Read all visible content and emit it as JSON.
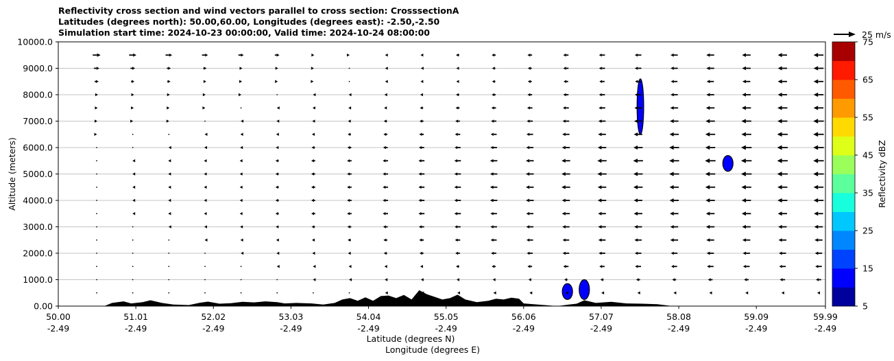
{
  "chart_data": {
    "type": "cross-section",
    "title_lines": [
      "Reflectivity cross section and wind vectors parallel to cross section: CrosssectionA",
      "Latitudes (degrees north): 50.00,60.00, Longitudes (degrees east): -2.50,-2.50",
      "Simulation start time: 2024-10-23 00:00:00, Valid time: 2024-10-24 08:00:00"
    ],
    "ylabel": "Altitude (meters)",
    "xlabel_line1": "Latitude (degrees N)",
    "xlabel_line2": "Longitude (degrees E)",
    "xlim": [
      50.0,
      59.99
    ],
    "ylim": [
      0,
      10000
    ],
    "grid": "horizontal",
    "y_ticks": [
      {
        "value": 0,
        "label": "0.00"
      },
      {
        "value": 1000,
        "label": "1000.0"
      },
      {
        "value": 2000,
        "label": "2000.0"
      },
      {
        "value": 3000,
        "label": "3000.0"
      },
      {
        "value": 4000,
        "label": "4000.0"
      },
      {
        "value": 5000,
        "label": "5000.0"
      },
      {
        "value": 6000,
        "label": "6000.0"
      },
      {
        "value": 7000,
        "label": "7000.0"
      },
      {
        "value": 8000,
        "label": "8000.0"
      },
      {
        "value": 9000,
        "label": "9000.0"
      },
      {
        "value": 10000,
        "label": "10000.0"
      }
    ],
    "x_ticks": [
      {
        "value": 50.0,
        "lat": "50.00",
        "lon": "-2.49"
      },
      {
        "value": 51.01,
        "lat": "51.01",
        "lon": "-2.49"
      },
      {
        "value": 52.02,
        "lat": "52.02",
        "lon": "-2.49"
      },
      {
        "value": 53.03,
        "lat": "53.03",
        "lon": "-2.49"
      },
      {
        "value": 54.04,
        "lat": "54.04",
        "lon": "-2.49"
      },
      {
        "value": 55.05,
        "lat": "55.05",
        "lon": "-2.49"
      },
      {
        "value": 56.06,
        "lat": "56.06",
        "lon": "-2.49"
      },
      {
        "value": 57.07,
        "lat": "57.07",
        "lon": "-2.49"
      },
      {
        "value": 58.08,
        "lat": "58.08",
        "lon": "-2.49"
      },
      {
        "value": 59.09,
        "lat": "59.09",
        "lon": "-2.49"
      },
      {
        "value": 59.99,
        "lat": "59.99",
        "lon": "-2.49"
      }
    ],
    "quiver_key": {
      "label": "25 m/s",
      "speed": 25
    },
    "wind": {
      "levels": [
        500,
        1000,
        1500,
        2000,
        2500,
        3000,
        3500,
        4000,
        4500,
        5000,
        5500,
        6000,
        6500,
        7000,
        7500,
        8000,
        8500,
        9000,
        9500
      ],
      "lat_points": [
        50.5,
        50.97,
        51.44,
        51.91,
        52.38,
        52.85,
        53.32,
        53.79,
        54.26,
        54.73,
        55.2,
        55.67,
        56.14,
        56.61,
        57.08,
        57.55,
        58.02,
        58.49,
        58.96,
        59.43,
        59.9
      ],
      "profiles": [
        {
          "from": 500,
          "values": [
            0,
            0,
            0,
            0,
            0,
            0,
            0,
            0,
            -1,
            -1,
            -1,
            -1,
            -1,
            -1,
            -2,
            -2,
            -2,
            -3,
            -3,
            -3,
            -4
          ]
        },
        {
          "from": 1000,
          "values": [
            0,
            0,
            0,
            0,
            0,
            0,
            -1,
            -1,
            -2,
            -2,
            -3,
            -3,
            -4,
            -5,
            -5,
            -6,
            -6,
            -7,
            -7,
            -8,
            -8
          ]
        },
        {
          "from": 1500,
          "values": [
            0,
            0,
            0,
            0,
            0,
            -1,
            -1,
            -2,
            -3,
            -4,
            -5,
            -6,
            -7,
            -8,
            -8,
            -9,
            -9,
            -10,
            -10,
            -10,
            -10
          ]
        },
        {
          "from": 2000,
          "values": [
            0,
            0,
            0,
            0,
            -1,
            -2,
            -3,
            -4,
            -5,
            -6,
            -7,
            -8,
            -9,
            -10,
            -10,
            -10,
            -10,
            -11,
            -11,
            -11,
            -11
          ]
        },
        {
          "from": 2500,
          "values": [
            0,
            0,
            0,
            -1,
            -2,
            -3,
            -4,
            -5,
            -6,
            -7,
            -8,
            -9,
            -10,
            -10,
            -11,
            -11,
            -12,
            -12,
            -12,
            -12,
            -12
          ]
        },
        {
          "from": 3000,
          "values": [
            0,
            0,
            -1,
            -2,
            -3,
            -4,
            -5,
            -6,
            -7,
            -8,
            -9,
            -10,
            -11,
            -11,
            -12,
            -12,
            -12,
            -13,
            -13,
            -13,
            -13
          ]
        },
        {
          "from": 3500,
          "values": [
            0,
            -1,
            -2,
            -3,
            -4,
            -5,
            -6,
            -7,
            -8,
            -9,
            -10,
            -10,
            -11,
            -12,
            -12,
            -13,
            -13,
            -13,
            -14,
            -14,
            -14
          ]
        },
        {
          "from": 4000,
          "values": [
            0,
            -1,
            -2,
            -3,
            -4,
            -5,
            -6,
            -7,
            -8,
            -9,
            -10,
            -11,
            -12,
            -12,
            -13,
            -13,
            -14,
            -14,
            -14,
            -15,
            -15
          ]
        },
        {
          "from": 4500,
          "values": [
            0,
            -1,
            -2,
            -3,
            -4,
            -5,
            -6,
            -7,
            -8,
            -9,
            -10,
            -11,
            -12,
            -13,
            -13,
            -14,
            -14,
            -15,
            -15,
            -15,
            -15
          ]
        },
        {
          "from": 5000,
          "values": [
            0,
            -1,
            -2,
            -3,
            -4,
            -5,
            -6,
            -7,
            -8,
            -9,
            -10,
            -11,
            -12,
            -13,
            -14,
            -14,
            -15,
            -15,
            -16,
            -16,
            -16
          ]
        },
        {
          "from": 5500,
          "values": [
            0,
            -1,
            -2,
            -3,
            -4,
            -5,
            -6,
            -7,
            -8,
            -9,
            -10,
            -11,
            -12,
            -13,
            -14,
            -15,
            -15,
            -16,
            -16,
            -16,
            -16
          ]
        },
        {
          "from": 6000,
          "values": [
            0,
            0,
            -1,
            -2,
            -3,
            -4,
            -5,
            -6,
            -7,
            -8,
            -9,
            -10,
            -11,
            -12,
            -13,
            -14,
            -15,
            -15,
            -16,
            -16,
            -16
          ]
        },
        {
          "from": 6500,
          "values": [
            1,
            0,
            0,
            -1,
            -2,
            -3,
            -4,
            -5,
            -6,
            -7,
            -8,
            -9,
            -10,
            -11,
            -12,
            -13,
            -14,
            -15,
            -15,
            -16,
            -16
          ]
        },
        {
          "from": 7000,
          "values": [
            2,
            1,
            1,
            0,
            -1,
            -2,
            -3,
            -4,
            -5,
            -6,
            -7,
            -8,
            -9,
            -10,
            -11,
            -12,
            -13,
            -14,
            -15,
            -15,
            -16
          ]
        },
        {
          "from": 7500,
          "values": [
            3,
            3,
            2,
            1,
            0,
            -1,
            -2,
            -3,
            -4,
            -5,
            -6,
            -7,
            -8,
            -9,
            -10,
            -11,
            -12,
            -13,
            -14,
            -15,
            -15
          ]
        },
        {
          "from": 8000,
          "values": [
            4,
            4,
            3,
            2,
            1,
            0,
            -1,
            -2,
            -3,
            -4,
            -5,
            -6,
            -7,
            -8,
            -9,
            -10,
            -11,
            -12,
            -13,
            -14,
            -15
          ]
        },
        {
          "from": 8500,
          "values": [
            6,
            5,
            5,
            4,
            3,
            2,
            1,
            0,
            -1,
            -3,
            -4,
            -5,
            -6,
            -7,
            -8,
            -9,
            -10,
            -11,
            -12,
            -14,
            -15
          ]
        },
        {
          "from": 9000,
          "values": [
            8,
            7,
            6,
            5,
            4,
            3,
            2,
            0,
            -1,
            -2,
            -4,
            -5,
            -6,
            -8,
            -9,
            -10,
            -11,
            -12,
            -13,
            -14,
            -15
          ]
        },
        {
          "from": 9500,
          "values": [
            12,
            11,
            10,
            9,
            8,
            7,
            3,
            1,
            -1,
            -3,
            -5,
            -6,
            -7,
            -8,
            -9,
            -10,
            -11,
            -12,
            -13,
            -14,
            -15
          ]
        }
      ]
    },
    "terrain": [
      [
        50.0,
        0
      ],
      [
        50.6,
        0
      ],
      [
        50.7,
        120
      ],
      [
        50.85,
        180
      ],
      [
        50.95,
        100
      ],
      [
        51.1,
        150
      ],
      [
        51.2,
        220
      ],
      [
        51.35,
        120
      ],
      [
        51.5,
        60
      ],
      [
        51.7,
        40
      ],
      [
        51.85,
        130
      ],
      [
        51.95,
        170
      ],
      [
        52.1,
        90
      ],
      [
        52.25,
        110
      ],
      [
        52.4,
        160
      ],
      [
        52.55,
        140
      ],
      [
        52.7,
        180
      ],
      [
        52.85,
        150
      ],
      [
        52.95,
        100
      ],
      [
        53.1,
        120
      ],
      [
        53.3,
        100
      ],
      [
        53.45,
        60
      ],
      [
        53.6,
        120
      ],
      [
        53.7,
        250
      ],
      [
        53.8,
        300
      ],
      [
        53.9,
        200
      ],
      [
        54.0,
        330
      ],
      [
        54.1,
        200
      ],
      [
        54.2,
        380
      ],
      [
        54.3,
        400
      ],
      [
        54.4,
        300
      ],
      [
        54.5,
        420
      ],
      [
        54.6,
        250
      ],
      [
        54.7,
        600
      ],
      [
        54.8,
        450
      ],
      [
        54.9,
        350
      ],
      [
        55.0,
        250
      ],
      [
        55.1,
        300
      ],
      [
        55.2,
        430
      ],
      [
        55.3,
        250
      ],
      [
        55.45,
        150
      ],
      [
        55.6,
        200
      ],
      [
        55.7,
        280
      ],
      [
        55.8,
        250
      ],
      [
        55.9,
        320
      ],
      [
        56.0,
        280
      ],
      [
        56.06,
        100
      ],
      [
        56.5,
        0
      ],
      [
        56.65,
        60
      ],
      [
        56.75,
        90
      ],
      [
        56.85,
        220
      ],
      [
        57.0,
        120
      ],
      [
        57.2,
        160
      ],
      [
        57.4,
        100
      ],
      [
        57.6,
        90
      ],
      [
        57.8,
        70
      ],
      [
        58.0,
        0
      ],
      [
        59.99,
        0
      ]
    ],
    "reflectivity_cells": [
      {
        "lat": 57.58,
        "alt_bottom": 6500,
        "alt_top": 8600,
        "dbz": 10
      },
      {
        "lat": 58.72,
        "alt_bottom": 5100,
        "alt_top": 5700,
        "dbz": 10
      },
      {
        "lat": 56.63,
        "alt_bottom": 250,
        "alt_top": 850,
        "dbz": 10
      },
      {
        "lat": 56.85,
        "alt_bottom": 250,
        "alt_top": 1000,
        "dbz": 10
      }
    ],
    "colorbar": {
      "label": "Reflectivity dBZ",
      "min": 5,
      "max": 75,
      "step": 5,
      "ticks": [
        {
          "value": 5,
          "label": "5"
        },
        {
          "value": 15,
          "label": "15"
        },
        {
          "value": 25,
          "label": "25"
        },
        {
          "value": 35,
          "label": "35"
        },
        {
          "value": 45,
          "label": "45"
        },
        {
          "value": 55,
          "label": "55"
        },
        {
          "value": 65,
          "label": "65"
        },
        {
          "value": 75,
          "label": "75"
        }
      ],
      "colors": [
        "#00009d",
        "#0000ff",
        "#0043ff",
        "#0087ff",
        "#00c8ff",
        "#18ffde",
        "#5bff9b",
        "#9bff5b",
        "#deff18",
        "#ffda00",
        "#ff9a00",
        "#ff5a00",
        "#ff1a00",
        "#a80000"
      ]
    }
  }
}
